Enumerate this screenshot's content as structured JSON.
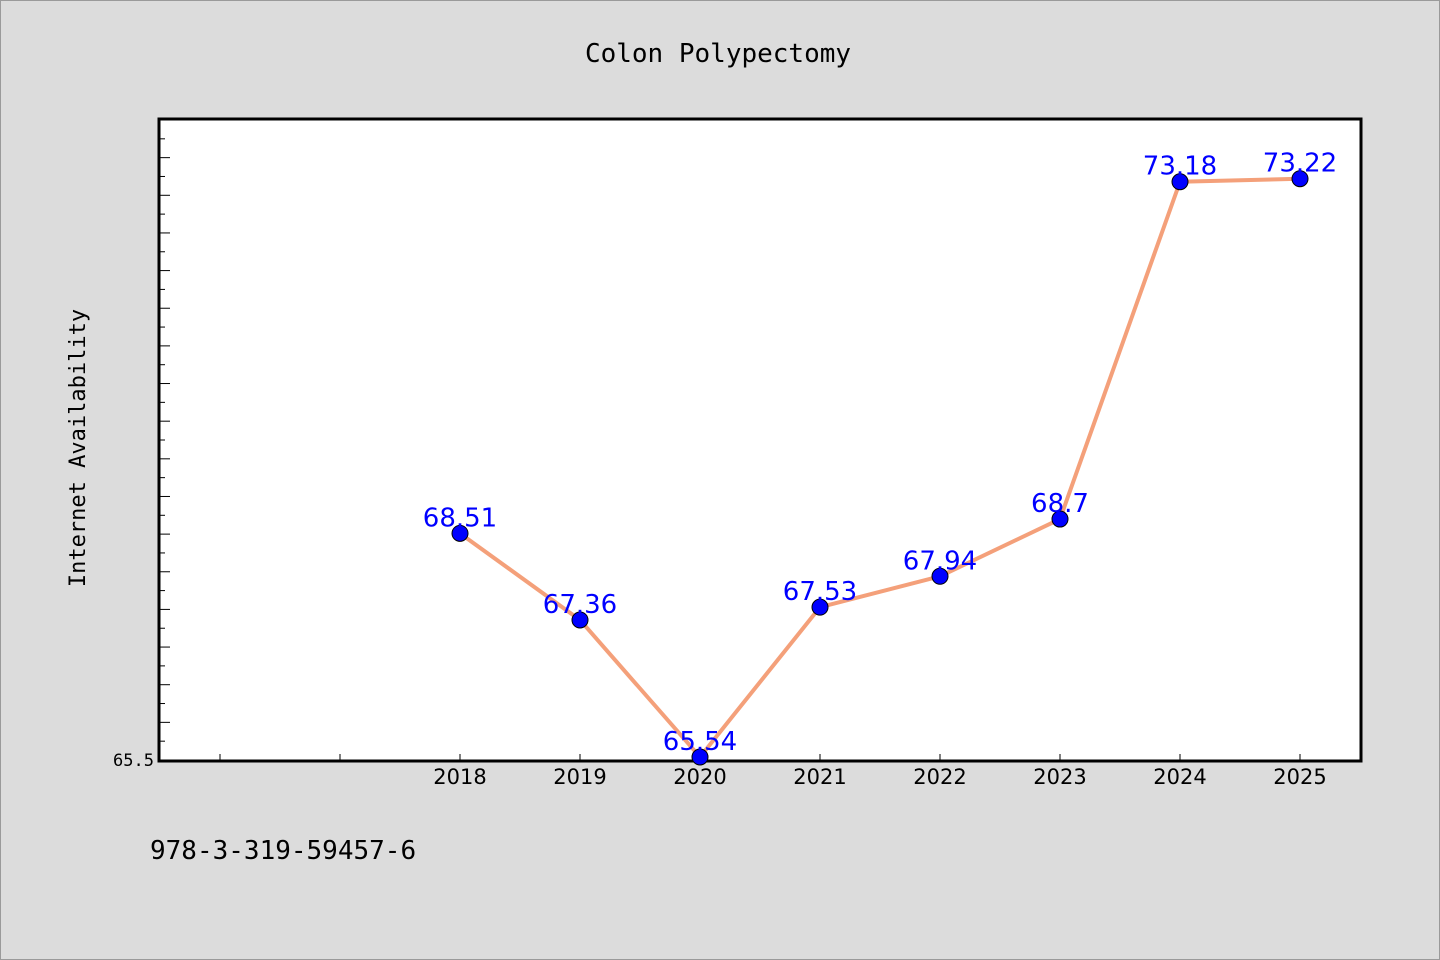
{
  "chart_data": {
    "type": "line",
    "title": "Colon Polypectomy",
    "xlabel": "",
    "ylabel": "Internet Availability",
    "x": [
      "2018",
      "2019",
      "2020",
      "2021",
      "2022",
      "2023",
      "2024",
      "2025"
    ],
    "series": [
      {
        "values": [
          68.51,
          67.36,
          65.54,
          67.53,
          67.94,
          68.7,
          73.18,
          73.22
        ],
        "data_labels": [
          "68.51",
          "67.36",
          "65.54",
          "67.53",
          "67.94",
          "68.7",
          "73.18",
          "73.22"
        ]
      }
    ],
    "y_tick_labels": [
      "65.5"
    ],
    "ylim": [
      65.5,
      74.0
    ],
    "xlim": [
      2015.5,
      2025.5
    ],
    "grid": false,
    "legend": "none",
    "colors": {
      "line": "#f4a07a",
      "marker": "#0000ff",
      "label": "#0000ff",
      "background": "#dcdcdc",
      "plot_background": "#ffffff"
    }
  },
  "footer": {
    "code": "978-3-319-59457-6"
  }
}
